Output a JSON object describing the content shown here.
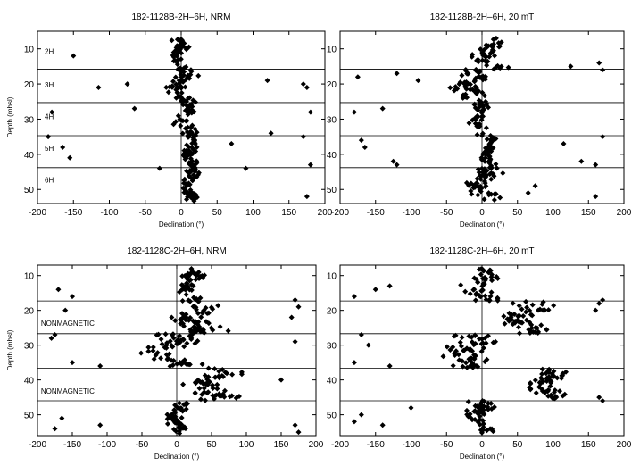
{
  "chart_data": [
    {
      "type": "scatter",
      "title": "182-1128B-2H–6H,  NRM",
      "xlabel": "Declination (°)",
      "ylabel": "Depth (mbsl)",
      "xlim": [
        -200,
        200
      ],
      "ylim": [
        5,
        54
      ],
      "xticks": [
        -200,
        -150,
        -100,
        -50,
        0,
        50,
        100,
        150,
        200
      ],
      "yticks": [
        10,
        20,
        30,
        40,
        50
      ],
      "y_reversed": true,
      "boundaries": [
        15.8,
        25.3,
        34.7,
        43.8
      ],
      "annotations": [
        {
          "text": "2H",
          "x": -190,
          "y": 11.5
        },
        {
          "text": "3H",
          "x": -190,
          "y": 21
        },
        {
          "text": "4H",
          "x": -190,
          "y": 30
        },
        {
          "text": "5H",
          "x": -190,
          "y": 39
        },
        {
          "text": "6H",
          "x": -190,
          "y": 48
        }
      ],
      "clusters": [
        {
          "y0": 7,
          "y1": 15.8,
          "center": -3,
          "spread": 14,
          "count": 40,
          "seed": 11
        },
        {
          "y0": 15.8,
          "y1": 25.3,
          "center": 0,
          "spread": 22,
          "count": 55,
          "seed": 12
        },
        {
          "y0": 25.3,
          "y1": 34.7,
          "center": 8,
          "spread": 18,
          "count": 40,
          "seed": 13
        },
        {
          "y0": 34.7,
          "y1": 43.8,
          "center": 14,
          "spread": 14,
          "count": 45,
          "seed": 14
        },
        {
          "y0": 43.8,
          "y1": 53.5,
          "center": 12,
          "spread": 13,
          "count": 50,
          "seed": 15
        }
      ],
      "outliers": [
        [
          -150,
          12
        ],
        [
          -115,
          21
        ],
        [
          -75,
          20
        ],
        [
          -180,
          28
        ],
        [
          -65,
          27
        ],
        [
          170,
          20
        ],
        [
          175,
          21
        ],
        [
          120,
          19
        ],
        [
          180,
          28
        ],
        [
          125,
          34
        ],
        [
          170,
          35
        ],
        [
          -165,
          38
        ],
        [
          -155,
          41
        ],
        [
          -185,
          35
        ],
        [
          180,
          43
        ],
        [
          -30,
          44
        ],
        [
          175,
          52
        ],
        [
          70,
          37
        ],
        [
          90,
          44
        ]
      ]
    },
    {
      "type": "scatter",
      "title": "182-1128B-2H–6H, 20 mT",
      "xlabel": "Declination (°)",
      "ylabel": "",
      "xlim": [
        -200,
        200
      ],
      "ylim": [
        5,
        54
      ],
      "xticks": [
        -200,
        -150,
        -100,
        -50,
        0,
        50,
        100,
        150,
        200
      ],
      "yticks": [
        10,
        20,
        30,
        40,
        50
      ],
      "y_reversed": true,
      "boundaries": [
        15.8,
        25.3,
        34.7,
        43.8
      ],
      "annotations": [],
      "clusters": [
        {
          "y0": 7,
          "y1": 15.8,
          "center": 12,
          "spread": 25,
          "count": 45,
          "seed": 21
        },
        {
          "y0": 15.8,
          "y1": 25.3,
          "center": -15,
          "spread": 30,
          "count": 55,
          "seed": 22
        },
        {
          "y0": 25.3,
          "y1": 34.7,
          "center": -5,
          "spread": 18,
          "count": 35,
          "seed": 23
        },
        {
          "y0": 34.7,
          "y1": 43.8,
          "center": 10,
          "spread": 13,
          "count": 45,
          "seed": 24
        },
        {
          "y0": 43.8,
          "y1": 53.5,
          "center": 0,
          "spread": 25,
          "count": 55,
          "seed": 25
        }
      ],
      "outliers": [
        [
          -175,
          18
        ],
        [
          -120,
          17
        ],
        [
          -90,
          19
        ],
        [
          125,
          15
        ],
        [
          165,
          14
        ],
        [
          170,
          16
        ],
        [
          -180,
          28
        ],
        [
          -140,
          27
        ],
        [
          -165,
          38
        ],
        [
          -170,
          36
        ],
        [
          -120,
          43
        ],
        [
          -125,
          42
        ],
        [
          170,
          35
        ],
        [
          140,
          42
        ],
        [
          115,
          37
        ],
        [
          160,
          43
        ],
        [
          160,
          52
        ],
        [
          75,
          49
        ],
        [
          65,
          51
        ]
      ]
    },
    {
      "type": "scatter",
      "title": "182-1128C-2H–6H,  NRM",
      "xlabel": "Declination (°)",
      "ylabel": "Depth (mbsl)",
      "xlim": [
        -200,
        200
      ],
      "ylim": [
        7,
        56
      ],
      "xticks": [
        -200,
        -150,
        -100,
        -50,
        0,
        50,
        100,
        150,
        200
      ],
      "yticks": [
        10,
        20,
        30,
        40,
        50
      ],
      "y_reversed": true,
      "boundaries": [
        17.3,
        26.7,
        36.6,
        46.0
      ],
      "annotations": [
        {
          "text": "NONMAGNETIC",
          "x": -195,
          "y": 24.5
        },
        {
          "text": "NONMAGNETIC",
          "x": -195,
          "y": 44
        }
      ],
      "clusters": [
        {
          "y0": 8,
          "y1": 17.3,
          "center": 18,
          "spread": 22,
          "count": 50,
          "seed": 31
        },
        {
          "y0": 17.3,
          "y1": 26.7,
          "center": 30,
          "spread": 45,
          "count": 60,
          "seed": 32
        },
        {
          "y0": 26.7,
          "y1": 36.6,
          "center": -10,
          "spread": 45,
          "count": 60,
          "seed": 33
        },
        {
          "y0": 36.6,
          "y1": 46.0,
          "center": 50,
          "spread": 45,
          "count": 60,
          "seed": 34
        },
        {
          "y0": 46.0,
          "y1": 55.5,
          "center": 0,
          "spread": 18,
          "count": 50,
          "seed": 35
        }
      ],
      "outliers": [
        [
          -170,
          14
        ],
        [
          -150,
          16
        ],
        [
          -160,
          20
        ],
        [
          -180,
          28
        ],
        [
          -175,
          27
        ],
        [
          -150,
          35
        ],
        [
          -110,
          36
        ],
        [
          170,
          17
        ],
        [
          175,
          19
        ],
        [
          165,
          22
        ],
        [
          170,
          29
        ],
        [
          150,
          40
        ],
        [
          -165,
          51
        ],
        [
          -175,
          54
        ],
        [
          -110,
          53
        ],
        [
          170,
          53
        ],
        [
          175,
          55
        ]
      ]
    },
    {
      "type": "scatter",
      "title": "182-1128C-2H–6H, 20 mT",
      "xlabel": "Declination (°)",
      "ylabel": "",
      "xlim": [
        -200,
        200
      ],
      "ylim": [
        7,
        56
      ],
      "xticks": [
        -200,
        -150,
        -100,
        -50,
        0,
        50,
        100,
        150,
        200
      ],
      "yticks": [
        10,
        20,
        30,
        40,
        50
      ],
      "y_reversed": true,
      "boundaries": [
        17.3,
        26.7,
        36.6,
        46.0
      ],
      "annotations": [],
      "clusters": [
        {
          "y0": 8,
          "y1": 17.3,
          "center": 0,
          "spread": 30,
          "count": 50,
          "seed": 41
        },
        {
          "y0": 17.3,
          "y1": 26.7,
          "center": 60,
          "spread": 35,
          "count": 60,
          "seed": 42
        },
        {
          "y0": 26.7,
          "y1": 36.6,
          "center": -20,
          "spread": 40,
          "count": 60,
          "seed": 43
        },
        {
          "y0": 36.6,
          "y1": 46.0,
          "center": 90,
          "spread": 30,
          "count": 60,
          "seed": 44
        },
        {
          "y0": 46.0,
          "y1": 55.5,
          "center": -5,
          "spread": 25,
          "count": 50,
          "seed": 45
        }
      ],
      "outliers": [
        [
          -180,
          16
        ],
        [
          -150,
          14
        ],
        [
          -130,
          13
        ],
        [
          -170,
          27
        ],
        [
          -160,
          30
        ],
        [
          -180,
          35
        ],
        [
          -130,
          36
        ],
        [
          170,
          17
        ],
        [
          165,
          18
        ],
        [
          160,
          20
        ],
        [
          -170,
          50
        ],
        [
          -180,
          52
        ],
        [
          -140,
          53
        ],
        [
          165,
          45
        ],
        [
          170,
          46
        ],
        [
          -100,
          48
        ]
      ]
    }
  ]
}
